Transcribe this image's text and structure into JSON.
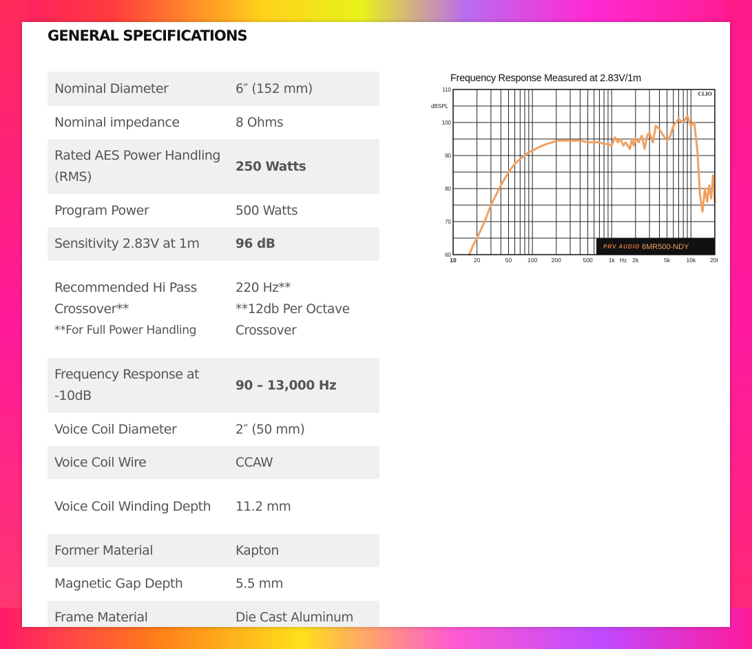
{
  "heading": "GENERAL SPECIFICATIONS",
  "specs": [
    {
      "label": "Nominal Diameter",
      "value": "6″ (152 mm)"
    },
    {
      "label": "Nominal impedance",
      "value": "8 Ohms"
    },
    {
      "label": "Rated AES Power Handling (RMS)",
      "value": "250 Watts"
    },
    {
      "label": "Program Power",
      "value": "500 Watts"
    },
    {
      "label": "Sensitivity 2.83V at 1m",
      "value": "96 dB"
    },
    {
      "label": "Recommended Hi Pass Crossover**",
      "label_note": "**For Full Power Handling",
      "value": "220 Hz**",
      "value_note": "**12db Per Octave Crossover"
    },
    {
      "label": "Frequency Response at -10dB",
      "value": "90 – 13,000 Hz"
    },
    {
      "label": "Voice Coil Diameter",
      "value": "2″ (50 mm)"
    },
    {
      "label": "Voice Coil Wire",
      "value": "CCAW"
    },
    {
      "label": "Voice Coil Winding Depth",
      "value": "11.2 mm"
    },
    {
      "label": "Former Material",
      "value": "Kapton"
    },
    {
      "label": "Magnetic Gap Depth",
      "value": "5.5 mm"
    },
    {
      "label": "Frame Material",
      "value": "Die Cast Aluminum"
    }
  ],
  "chart_data": {
    "type": "line",
    "title": "Frequency Response Measured at 2.83V/1m",
    "ylabel": "dBSPL",
    "brand_mark": "CLIO",
    "model_label": "6MR500-NDY",
    "logo_text": "PRV AUDIO",
    "x_scale": "log",
    "xlim": [
      10,
      20000
    ],
    "ylim": [
      60,
      110
    ],
    "grid": true,
    "line_color": "#f0a060",
    "x_tick_labels": [
      {
        "value": 10,
        "label": "10"
      },
      {
        "value": 20,
        "label": "20"
      },
      {
        "value": 50,
        "label": "50"
      },
      {
        "value": 100,
        "label": "100"
      },
      {
        "value": 200,
        "label": "200"
      },
      {
        "value": 500,
        "label": "500"
      },
      {
        "value": 1000,
        "label": "1k"
      },
      {
        "value": 1400,
        "label": "Hz"
      },
      {
        "value": 2000,
        "label": "2k"
      },
      {
        "value": 5000,
        "label": "5k"
      },
      {
        "value": 10000,
        "label": "10k"
      },
      {
        "value": 20000,
        "label": "20k"
      }
    ],
    "y_ticks": [
      60,
      70,
      80,
      90,
      100,
      110
    ],
    "series": [
      {
        "x": [
          16,
          18,
          20,
          25,
          30,
          40,
          50,
          60,
          70,
          80,
          90,
          100,
          120,
          150,
          180,
          200,
          250,
          300,
          400,
          500,
          600,
          700,
          800,
          900,
          1000,
          1100,
          1200,
          1300,
          1400,
          1500,
          1700,
          1800,
          1900,
          2000,
          2200,
          2400,
          2600,
          2800,
          3000,
          3300,
          3600,
          4000,
          4500,
          5000,
          5500,
          6000,
          7000,
          8000,
          9000,
          10000,
          11000,
          12000,
          13000,
          14000,
          15000,
          16000,
          17000,
          18000,
          19000,
          20000
        ],
        "y": [
          60,
          63,
          65,
          70,
          75,
          81,
          85,
          87.5,
          89,
          90,
          91,
          91.5,
          92.5,
          93.5,
          94,
          94.5,
          94.5,
          94.5,
          94.5,
          94,
          94,
          94,
          93.5,
          93.5,
          93,
          95.5,
          94,
          95,
          93,
          94,
          92,
          95,
          93,
          95,
          94,
          96,
          92,
          96,
          97,
          94,
          99,
          98,
          96,
          94.5,
          96,
          99,
          101,
          100,
          102,
          99,
          100,
          92,
          78,
          73,
          80,
          76,
          81,
          77,
          84,
          76
        ]
      }
    ]
  }
}
